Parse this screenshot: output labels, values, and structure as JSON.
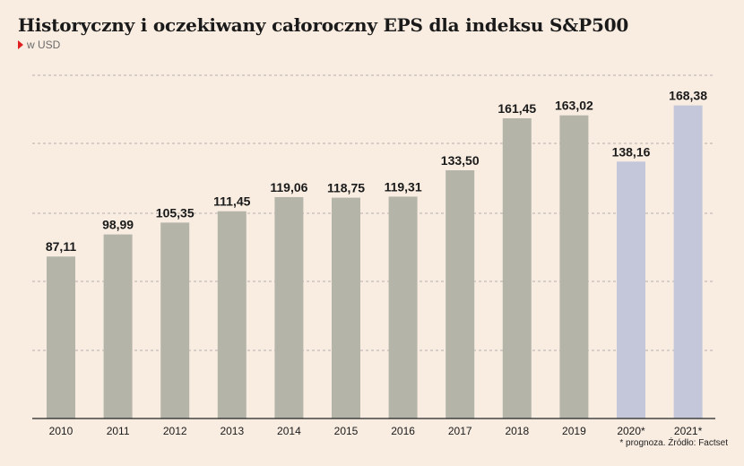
{
  "header": {
    "title": "Historyczny i oczekiwany całoroczny EPS dla indeksu S&P500",
    "subtitle": "w USD"
  },
  "footnote": "* prognoza. Źródło: Factset",
  "colors": {
    "historical_bar": "#b4b4a8",
    "forecast_bar": "#c4c6da",
    "grid": "#9a9a9a",
    "axis": "#222222"
  },
  "chart_data": {
    "type": "bar",
    "title": "Historyczny i oczekiwany całoroczny EPS dla indeksu S&P500",
    "subtitle": "w USD",
    "categories": [
      "2010",
      "2011",
      "2012",
      "2013",
      "2014",
      "2015",
      "2016",
      "2017",
      "2018",
      "2019",
      "2020*",
      "2021*"
    ],
    "values": [
      87.11,
      98.99,
      105.35,
      111.45,
      119.06,
      118.75,
      119.31,
      133.5,
      161.45,
      163.02,
      138.16,
      168.38
    ],
    "value_labels": [
      "87,11",
      "98,99",
      "105,35",
      "111,45",
      "119,06",
      "118,75",
      "119,31",
      "133,50",
      "161,45",
      "163,02",
      "138,16",
      "168,38"
    ],
    "forecast": [
      false,
      false,
      false,
      false,
      false,
      false,
      false,
      false,
      false,
      false,
      true,
      true
    ],
    "xlabel": "",
    "ylabel": "",
    "ylim": [
      0,
      180
    ],
    "grid": true,
    "y_ticks_shown": false
  }
}
